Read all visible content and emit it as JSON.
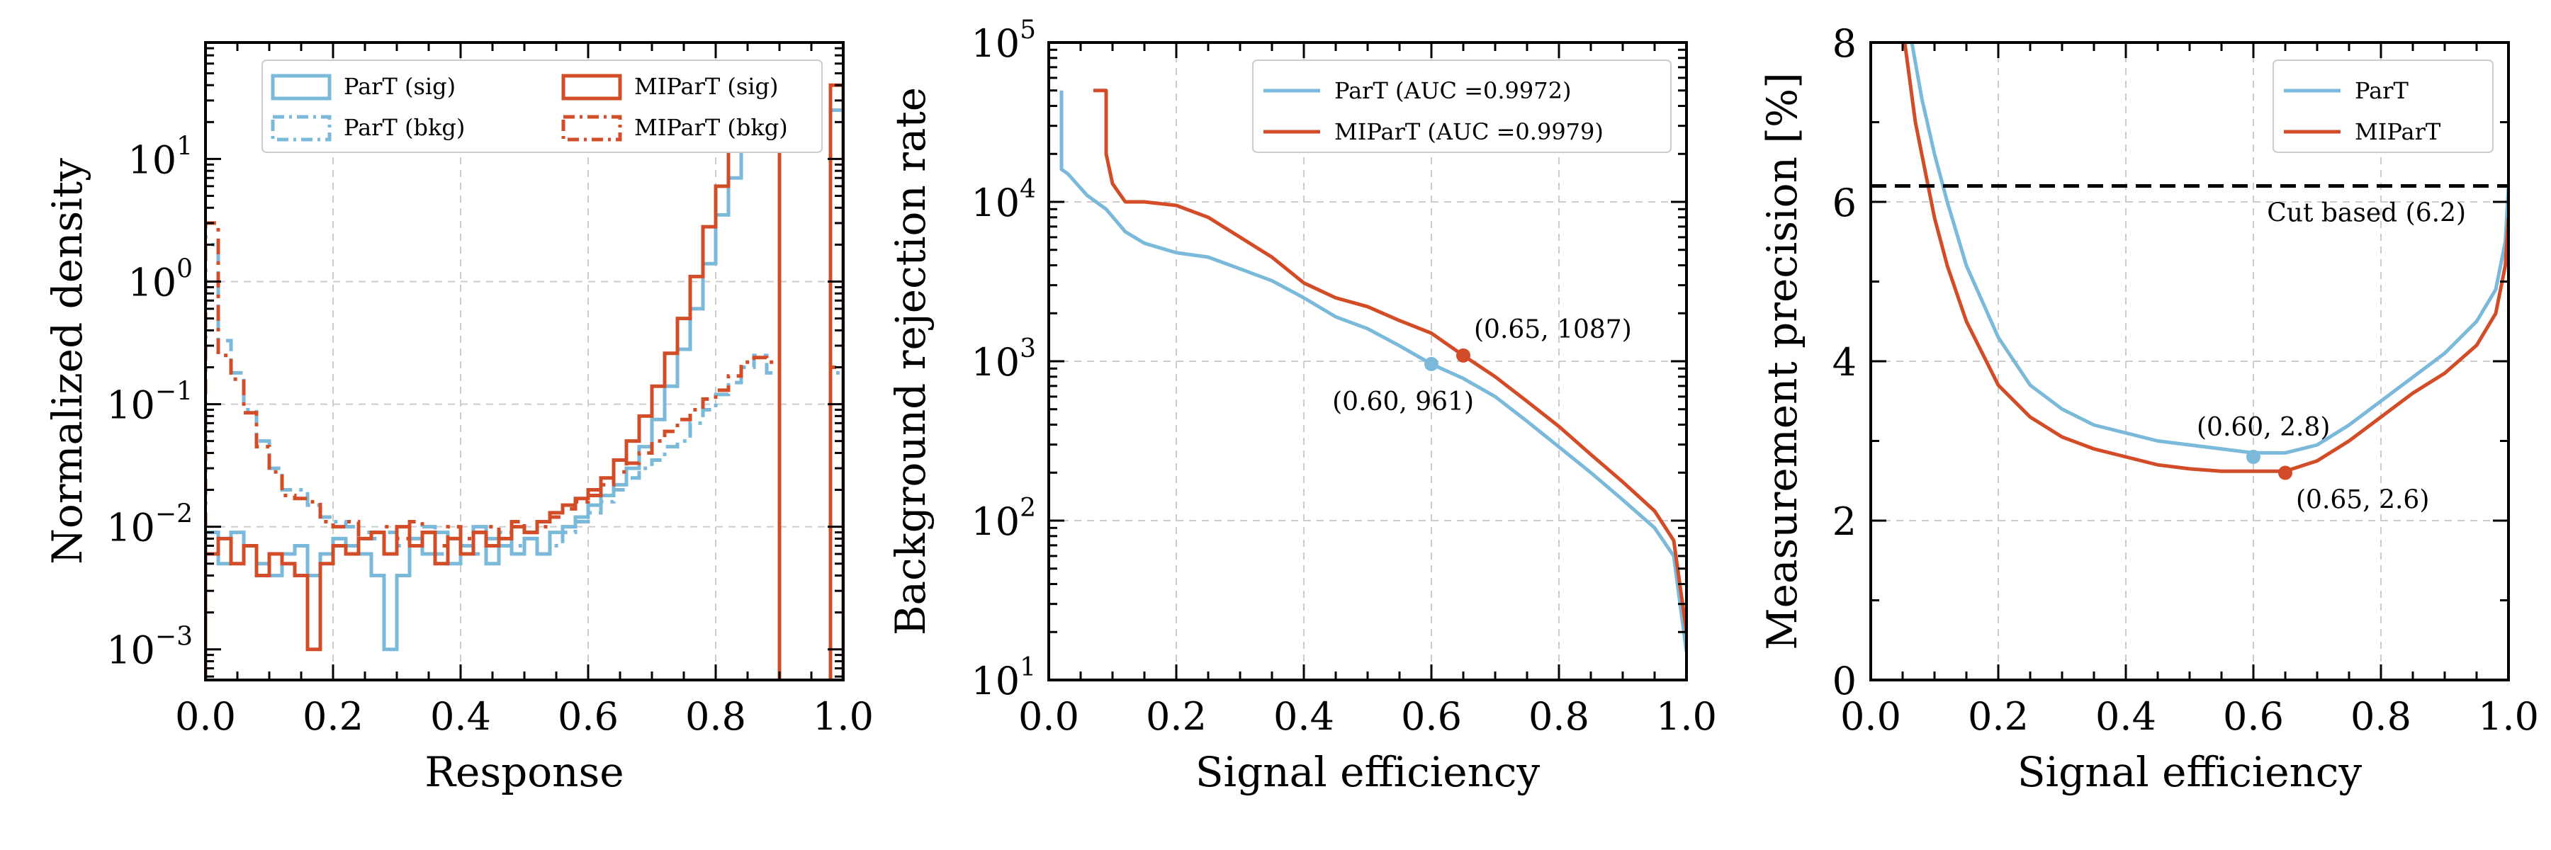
{
  "colors": {
    "part": "#7ab9da",
    "mipart": "#d24c27",
    "grid": "#cccccc",
    "cut": "#000000"
  },
  "chart_data": [
    {
      "type": "histogram",
      "xlabel": "Response",
      "ylabel": "Normalized density",
      "xlim": [
        0,
        1
      ],
      "ylim_log10": [
        -3.25,
        1.95
      ],
      "yscale": "log",
      "xticks": [
        0.0,
        0.2,
        0.4,
        0.6,
        0.8,
        1.0
      ],
      "xtick_labels": [
        "0.0",
        "0.2",
        "0.4",
        "0.6",
        "0.8",
        "1.0"
      ],
      "yticks": [
        {
          "base": "10",
          "exp": "−3",
          "value": -3
        },
        {
          "base": "10",
          "exp": "−2",
          "value": -2
        },
        {
          "base": "10",
          "exp": "−1",
          "value": -1
        },
        {
          "base": "10",
          "exp": "0",
          "value": 0
        },
        {
          "base": "10",
          "exp": "1",
          "value": 1
        }
      ],
      "grid": true,
      "legend": [
        "ParT (sig)",
        "ParT (bkg)",
        "MIParT (sig)",
        "MIParT (bkg)"
      ],
      "bin_edges_step": 0.02,
      "series": [
        {
          "name": "ParT (sig)",
          "style": "solid",
          "color": "part",
          "values": [
            0.009,
            0.005,
            0.009,
            0.007,
            0.005,
            0.004,
            0.006,
            0.007,
            0.004,
            0.006,
            0.008,
            0.007,
            0.006,
            0.004,
            0.001,
            0.004,
            0.008,
            0.006,
            0.009,
            0.005,
            0.007,
            0.01,
            0.005,
            0.007,
            0.006,
            0.008,
            0.006,
            0.009,
            0.01,
            0.012,
            0.015,
            0.018,
            0.022,
            0.03,
            0.045,
            0.075,
            0.14,
            0.28,
            0.6,
            1.4,
            3.5,
            7.0,
            15.0,
            32.0,
            60.0,
            0.0,
            0.0,
            0.0,
            0.0,
            25.0
          ]
        },
        {
          "name": "ParT (bkg)",
          "style": "dashdot",
          "color": "part",
          "values": [
            2.0,
            0.33,
            0.18,
            0.09,
            0.05,
            0.03,
            0.02,
            0.02,
            0.015,
            0.012,
            0.011,
            0.01,
            0.009,
            0.008,
            0.009,
            0.007,
            0.008,
            0.01,
            0.006,
            0.008,
            0.007,
            0.006,
            0.008,
            0.009,
            0.007,
            0.008,
            0.006,
            0.007,
            0.009,
            0.011,
            0.013,
            0.016,
            0.02,
            0.025,
            0.03,
            0.035,
            0.045,
            0.05,
            0.07,
            0.09,
            0.12,
            0.15,
            0.2,
            0.25,
            0.18,
            0.0,
            0.0,
            0.0,
            0.0,
            0.18
          ]
        },
        {
          "name": "MIParT (sig)",
          "style": "solid",
          "color": "mipart",
          "values": [
            0.006,
            0.008,
            0.005,
            0.007,
            0.004,
            0.006,
            0.005,
            0.004,
            0.001,
            0.005,
            0.007,
            0.006,
            0.008,
            0.009,
            0.006,
            0.01,
            0.007,
            0.009,
            0.005,
            0.008,
            0.006,
            0.009,
            0.007,
            0.008,
            0.01,
            0.009,
            0.011,
            0.013,
            0.015,
            0.017,
            0.02,
            0.025,
            0.035,
            0.05,
            0.08,
            0.14,
            0.26,
            0.5,
            1.1,
            2.8,
            6.0,
            13.0,
            25.0,
            45.0,
            40.0,
            0.0,
            0.0,
            0.0,
            0.0,
            40.0
          ]
        },
        {
          "name": "MIParT (bkg)",
          "style": "dashdot",
          "color": "mipart",
          "values": [
            3.0,
            0.25,
            0.16,
            0.085,
            0.045,
            0.028,
            0.018,
            0.017,
            0.016,
            0.011,
            0.01,
            0.011,
            0.008,
            0.009,
            0.01,
            0.008,
            0.011,
            0.009,
            0.007,
            0.01,
            0.008,
            0.009,
            0.01,
            0.008,
            0.011,
            0.009,
            0.01,
            0.012,
            0.014,
            0.016,
            0.018,
            0.022,
            0.028,
            0.033,
            0.04,
            0.05,
            0.06,
            0.075,
            0.09,
            0.11,
            0.13,
            0.17,
            0.22,
            0.24,
            0.22,
            0.0,
            0.0,
            0.0,
            0.0,
            0.2
          ]
        }
      ]
    },
    {
      "type": "line",
      "xlabel": "Signal efficiency",
      "ylabel": "Background rejection rate",
      "xlim": [
        0,
        1
      ],
      "ylim_log10": [
        1,
        5
      ],
      "yscale": "log",
      "xticks": [
        0.0,
        0.2,
        0.4,
        0.6,
        0.8,
        1.0
      ],
      "xtick_labels": [
        "0.0",
        "0.2",
        "0.4",
        "0.6",
        "0.8",
        "1.0"
      ],
      "yticks": [
        {
          "base": "10",
          "exp": "1",
          "value": 1
        },
        {
          "base": "10",
          "exp": "2",
          "value": 2
        },
        {
          "base": "10",
          "exp": "3",
          "value": 3
        },
        {
          "base": "10",
          "exp": "4",
          "value": 4
        },
        {
          "base": "10",
          "exp": "5",
          "value": 5
        }
      ],
      "grid": true,
      "legend": [
        "ParT (AUC =0.9972)",
        "MIParT (AUC =0.9979)"
      ],
      "series": [
        {
          "name": "ParT (AUC =0.9972)",
          "color": "part",
          "x": [
            0.02,
            0.02,
            0.03,
            0.06,
            0.09,
            0.12,
            0.15,
            0.2,
            0.25,
            0.3,
            0.35,
            0.4,
            0.45,
            0.5,
            0.55,
            0.6,
            0.65,
            0.7,
            0.75,
            0.8,
            0.85,
            0.9,
            0.95,
            0.98,
            1.0
          ],
          "y": [
            50000,
            16000,
            15000,
            11000,
            9000,
            6500,
            5500,
            4800,
            4500,
            3800,
            3200,
            2500,
            1900,
            1600,
            1250,
            961,
            780,
            600,
            420,
            290,
            200,
            135,
            90,
            60,
            15
          ]
        },
        {
          "name": "MIParT (AUC =0.9979)",
          "color": "mipart",
          "x": [
            0.07,
            0.07,
            0.09,
            0.09,
            0.1,
            0.12,
            0.15,
            0.2,
            0.25,
            0.3,
            0.35,
            0.4,
            0.45,
            0.5,
            0.55,
            0.6,
            0.65,
            0.7,
            0.75,
            0.8,
            0.85,
            0.9,
            0.95,
            0.98,
            1.0
          ],
          "y": [
            50000,
            50000,
            50000,
            20000,
            13000,
            10000,
            10000,
            9500,
            8000,
            6000,
            4500,
            3100,
            2500,
            2200,
            1800,
            1500,
            1087,
            800,
            560,
            390,
            260,
            175,
            115,
            75,
            20
          ]
        }
      ],
      "points": [
        {
          "x": 0.6,
          "y": 961,
          "color": "part",
          "label": "(0.60, 961)"
        },
        {
          "x": 0.65,
          "y": 1087,
          "color": "mipart",
          "label": "(0.65, 1087)"
        }
      ]
    },
    {
      "type": "line",
      "xlabel": "Signal efficiency",
      "ylabel": "Measurement precision [%]",
      "xlim": [
        0,
        1
      ],
      "ylim": [
        0,
        8
      ],
      "yscale": "linear",
      "xticks": [
        0.0,
        0.2,
        0.4,
        0.6,
        0.8,
        1.0
      ],
      "xtick_labels": [
        "0.0",
        "0.2",
        "0.4",
        "0.6",
        "0.8",
        "1.0"
      ],
      "yticks": [
        {
          "label": "0",
          "value": 0
        },
        {
          "label": "2",
          "value": 2
        },
        {
          "label": "4",
          "value": 4
        },
        {
          "label": "6",
          "value": 6
        },
        {
          "label": "8",
          "value": 8
        }
      ],
      "grid": true,
      "legend": [
        "ParT",
        "MIParT"
      ],
      "hline": {
        "y": 6.2,
        "label": "Cut based (6.2)"
      },
      "series": [
        {
          "name": "ParT",
          "color": "part",
          "x": [
            0.06,
            0.08,
            0.1,
            0.12,
            0.15,
            0.2,
            0.25,
            0.3,
            0.35,
            0.4,
            0.45,
            0.5,
            0.55,
            0.6,
            0.65,
            0.7,
            0.75,
            0.8,
            0.85,
            0.9,
            0.95,
            0.98,
            0.995,
            1.0
          ],
          "y": [
            8.2,
            7.3,
            6.6,
            6.0,
            5.2,
            4.3,
            3.7,
            3.4,
            3.2,
            3.1,
            3.0,
            2.95,
            2.9,
            2.85,
            2.85,
            2.95,
            3.2,
            3.5,
            3.8,
            4.1,
            4.5,
            4.9,
            5.5,
            6.2
          ]
        },
        {
          "name": "MIParT",
          "color": "mipart",
          "x": [
            0.05,
            0.07,
            0.09,
            0.1,
            0.12,
            0.15,
            0.2,
            0.25,
            0.3,
            0.35,
            0.4,
            0.45,
            0.5,
            0.55,
            0.6,
            0.65,
            0.7,
            0.75,
            0.8,
            0.85,
            0.9,
            0.95,
            0.98,
            0.995,
            1.0
          ],
          "y": [
            8.2,
            7.0,
            6.2,
            5.8,
            5.2,
            4.5,
            3.7,
            3.3,
            3.05,
            2.9,
            2.8,
            2.7,
            2.65,
            2.62,
            2.62,
            2.62,
            2.75,
            3.0,
            3.3,
            3.6,
            3.85,
            4.2,
            4.6,
            5.2,
            5.8
          ]
        }
      ],
      "points": [
        {
          "x": 0.6,
          "y": 2.8,
          "color": "part",
          "label": "(0.60, 2.8)"
        },
        {
          "x": 0.65,
          "y": 2.6,
          "color": "mipart",
          "label": "(0.65, 2.6)"
        }
      ]
    }
  ]
}
